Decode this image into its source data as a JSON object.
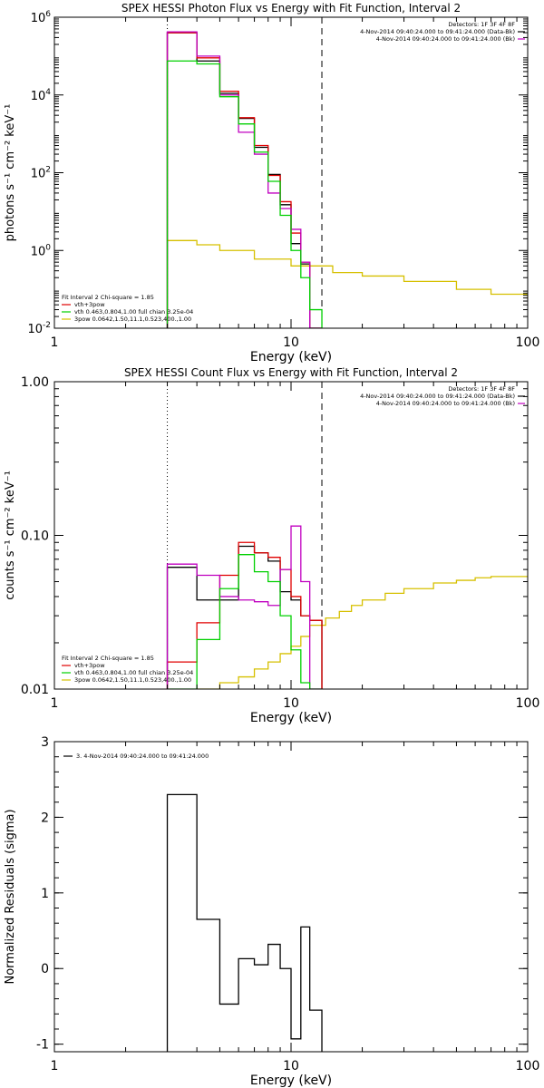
{
  "chart_data": [
    {
      "type": "line",
      "title": "SPEX HESSI Photon Flux vs Energy with Fit Function, Interval 2",
      "xlabel": "Energy (keV)",
      "ylabel": "photons s⁻¹ cm⁻² keV⁻¹",
      "xscale": "log",
      "yscale": "log",
      "xlim": [
        1,
        100
      ],
      "ylim": [
        0.01,
        1000000
      ],
      "x_ticks": [
        {
          "v": 1,
          "label": "1"
        },
        {
          "v": 10,
          "label": "10"
        },
        {
          "v": 100,
          "label": "100"
        }
      ],
      "y_ticks": [
        {
          "v": 0.01,
          "base": "10",
          "exp": "-2"
        },
        {
          "v": 1,
          "base": "10",
          "exp": "0"
        },
        {
          "v": 100,
          "base": "10",
          "exp": "2"
        },
        {
          "v": 10000,
          "base": "10",
          "exp": "4"
        },
        {
          "v": 1000000,
          "base": "10",
          "exp": "6"
        }
      ],
      "header_lines": [
        "Detectors: 1F 3F 4F 8F",
        "4-Nov-2014 09:40:24.000 to 09:41:24.000 (Data-Bk)",
        "4-Nov-2014 09:40:24.000 to 09:41:24.000 (Bk)"
      ],
      "header_colors": [
        "#000000",
        "#c000c0"
      ],
      "fit_title": "Fit Interval  2    Chi-square = 1.85",
      "legend": [
        {
          "name": "vth+3pow",
          "color": "#e00000"
        },
        {
          "name": "vth 0.463,0.804,1.00  full chian 3.25e-04",
          "color": "#00d000"
        },
        {
          "name": "3pow 0.0642,1.50,11.1,0.523,400.,1.00",
          "color": "#d6c000"
        }
      ],
      "vlines": [
        {
          "x": 3,
          "style": "dotted",
          "color": "#000000"
        },
        {
          "x": 13.5,
          "style": "dashed",
          "color": "#000000"
        }
      ],
      "orange_line_x": 3,
      "edges": [
        3,
        4,
        5,
        6,
        7,
        8,
        9,
        10,
        11,
        12,
        13.5
      ],
      "series": [
        {
          "name": "Data-Bk",
          "color": "#000000",
          "values": [
            400000,
            75000,
            11000,
            2500,
            450,
            90,
            15,
            1.5,
            0.45,
            0.01
          ]
        },
        {
          "name": "vth+3pow",
          "color": "#e00000",
          "values": [
            400000,
            90000,
            12500,
            2600,
            500,
            85,
            18,
            2.8,
            0.5,
            0.01
          ]
        },
        {
          "name": "Bk",
          "color": "#c000c0",
          "values": [
            420000,
            100000,
            10000,
            1100,
            300,
            30,
            12,
            3.5,
            0.5,
            0.01
          ]
        },
        {
          "name": "vth",
          "color": "#00d000",
          "values": [
            75000,
            63000,
            9000,
            1800,
            340,
            60,
            8,
            1.0,
            0.2,
            0.03
          ]
        }
      ],
      "pow_curve": {
        "color": "#d6c000",
        "points": [
          [
            3,
            1.8
          ],
          [
            4,
            1.4
          ],
          [
            5,
            1.0
          ],
          [
            7,
            0.6
          ],
          [
            10,
            0.4
          ],
          [
            15,
            0.27
          ],
          [
            20,
            0.22
          ],
          [
            30,
            0.16
          ],
          [
            50,
            0.1
          ],
          [
            70,
            0.075
          ],
          [
            100,
            0.055
          ]
        ]
      }
    },
    {
      "type": "line",
      "title": "SPEX HESSI Count Flux vs Energy with Fit Function, Interval 2",
      "xlabel": "Energy (keV)",
      "ylabel": "counts s⁻¹ cm⁻² keV⁻¹",
      "xscale": "log",
      "yscale": "log",
      "xlim": [
        1,
        100
      ],
      "ylim": [
        0.01,
        1.0
      ],
      "x_ticks": [
        {
          "v": 1,
          "label": "1"
        },
        {
          "v": 10,
          "label": "10"
        },
        {
          "v": 100,
          "label": "100"
        }
      ],
      "y_ticks": [
        {
          "v": 0.01,
          "label": "0.01"
        },
        {
          "v": 0.1,
          "label": "0.10"
        },
        {
          "v": 1.0,
          "label": "1.00"
        }
      ],
      "header_lines": [
        "Detectors: 1F 3F 4F 8F",
        "4-Nov-2014 09:40:24.000 to 09:41:24.000 (Data-Bk)",
        "4-Nov-2014 09:40:24.000 to 09:41:24.000 (Bk)"
      ],
      "header_colors": [
        "#000000",
        "#c000c0"
      ],
      "fit_title": "Fit Interval  2    Chi-square = 1.85",
      "legend": [
        {
          "name": "vth+3pow",
          "color": "#e00000"
        },
        {
          "name": "vth 0.463,0.804,1.00  full chian 3.25e-04",
          "color": "#00d000"
        },
        {
          "name": "3pow 0.0642,1.50,11.1,0.523,400.,1.00",
          "color": "#d6c000"
        }
      ],
      "vlines": [
        {
          "x": 3,
          "style": "dotted",
          "color": "#000000"
        },
        {
          "x": 13.5,
          "style": "dashed",
          "color": "#000000"
        }
      ],
      "edges": [
        3,
        4,
        5,
        6,
        7,
        8,
        9,
        10,
        11,
        12,
        13.5
      ],
      "series": [
        {
          "name": "Data-Bk",
          "color": "#000000",
          "values": [
            0.062,
            0.038,
            0.038,
            0.085,
            0.077,
            0.068,
            0.043,
            0.038,
            0.03,
            0.028
          ]
        },
        {
          "name": "vth+3pow",
          "color": "#e00000",
          "values": [
            0.015,
            0.027,
            0.055,
            0.09,
            0.077,
            0.072,
            0.06,
            0.04,
            0.03,
            0.028
          ]
        },
        {
          "name": "Bk",
          "color": "#c000c0",
          "values": [
            0.065,
            0.055,
            0.04,
            0.038,
            0.037,
            0.035,
            0.06,
            0.115,
            0.05,
            0.01
          ]
        },
        {
          "name": "vth",
          "color": "#00d000",
          "values": [
            0.01,
            0.021,
            0.045,
            0.075,
            0.058,
            0.05,
            0.03,
            0.018,
            0.011,
            0.01
          ]
        }
      ],
      "pow_curve": {
        "color": "#d6c000",
        "points": [
          [
            4,
            0.01
          ],
          [
            5,
            0.011
          ],
          [
            6,
            0.012
          ],
          [
            7,
            0.0135
          ],
          [
            8,
            0.015
          ],
          [
            9,
            0.017
          ],
          [
            10,
            0.019
          ],
          [
            11,
            0.022
          ],
          [
            12,
            0.026
          ],
          [
            14,
            0.029
          ],
          [
            16,
            0.032
          ],
          [
            18,
            0.035
          ],
          [
            20,
            0.038
          ],
          [
            25,
            0.042
          ],
          [
            30,
            0.045
          ],
          [
            40,
            0.049
          ],
          [
            50,
            0.051
          ],
          [
            60,
            0.053
          ],
          [
            70,
            0.054
          ],
          [
            100,
            0.054
          ]
        ]
      }
    },
    {
      "type": "line",
      "title": "",
      "xlabel": "Energy (keV)",
      "ylabel": "Normalized Residuals (sigma)",
      "xscale": "log",
      "yscale": "linear",
      "xlim": [
        1,
        100
      ],
      "ylim": [
        -1.1,
        3.0
      ],
      "x_ticks": [
        {
          "v": 1,
          "label": "1"
        },
        {
          "v": 10,
          "label": "10"
        },
        {
          "v": 100,
          "label": "100"
        }
      ],
      "y_ticks": [
        {
          "v": -1,
          "label": "-1"
        },
        {
          "v": 0,
          "label": "0"
        },
        {
          "v": 1,
          "label": "1"
        },
        {
          "v": 2,
          "label": "2"
        },
        {
          "v": 3,
          "label": "3"
        }
      ],
      "legend": [
        {
          "name": "3.  4-Nov-2014 09:40:24.000 to 09:41:24.000",
          "color": "#000000"
        }
      ],
      "edges": [
        3,
        4,
        5,
        6,
        7,
        8,
        9,
        10,
        11,
        12,
        13.5
      ],
      "series": [
        {
          "name": "residuals",
          "color": "#000000",
          "values": [
            2.3,
            0.65,
            -0.47,
            0.13,
            0.05,
            0.32,
            0.0,
            -0.93,
            0.55,
            -0.55
          ]
        }
      ]
    }
  ]
}
